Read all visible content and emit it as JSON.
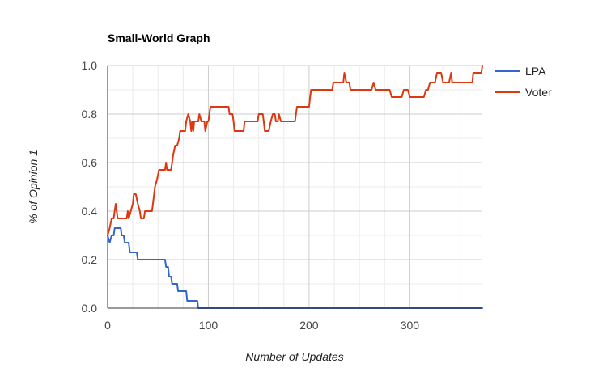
{
  "chart_data": {
    "type": "line",
    "title": "Small-World Graph",
    "xlabel": "Number of Updates",
    "ylabel": "% of Opinion 1",
    "xlim": [
      0,
      372
    ],
    "ylim": [
      0,
      1
    ],
    "x_ticks": [
      0,
      100,
      200,
      300
    ],
    "x_tick_labels": [
      "0",
      "100",
      "200",
      "300"
    ],
    "y_ticks": [
      0,
      0.2,
      0.4,
      0.6,
      0.8,
      1.0
    ],
    "y_tick_labels": [
      "0.0",
      "0.2",
      "0.4",
      "0.6",
      "0.8",
      "1.0"
    ],
    "grid": true,
    "legend_position": "right",
    "series": [
      {
        "name": "LPA",
        "color": "#3366cc",
        "points": [
          [
            0,
            0.3
          ],
          [
            2,
            0.27
          ],
          [
            4,
            0.3
          ],
          [
            6,
            0.3
          ],
          [
            7,
            0.33
          ],
          [
            13,
            0.33
          ],
          [
            14,
            0.3
          ],
          [
            16,
            0.3
          ],
          [
            17,
            0.27
          ],
          [
            21,
            0.27
          ],
          [
            22,
            0.23
          ],
          [
            29,
            0.23
          ],
          [
            30,
            0.2
          ],
          [
            57,
            0.2
          ],
          [
            58,
            0.17
          ],
          [
            60,
            0.17
          ],
          [
            61,
            0.13
          ],
          [
            63,
            0.13
          ],
          [
            64,
            0.1
          ],
          [
            69,
            0.1
          ],
          [
            70,
            0.07
          ],
          [
            78,
            0.07
          ],
          [
            79,
            0.03
          ],
          [
            89,
            0.03
          ],
          [
            90,
            0.0
          ],
          [
            372,
            0.0
          ]
        ]
      },
      {
        "name": "Voter",
        "color": "#dc3912",
        "points": [
          [
            0,
            0.3
          ],
          [
            2,
            0.33
          ],
          [
            4,
            0.37
          ],
          [
            6,
            0.37
          ],
          [
            7,
            0.4
          ],
          [
            8,
            0.43
          ],
          [
            10,
            0.37
          ],
          [
            19,
            0.37
          ],
          [
            20,
            0.4
          ],
          [
            21,
            0.37
          ],
          [
            23,
            0.4
          ],
          [
            25,
            0.43
          ],
          [
            26,
            0.47
          ],
          [
            28,
            0.47
          ],
          [
            30,
            0.43
          ],
          [
            32,
            0.4
          ],
          [
            33,
            0.37
          ],
          [
            36,
            0.37
          ],
          [
            37,
            0.4
          ],
          [
            44,
            0.4
          ],
          [
            45,
            0.43
          ],
          [
            47,
            0.5
          ],
          [
            49,
            0.53
          ],
          [
            51,
            0.57
          ],
          [
            57,
            0.57
          ],
          [
            58,
            0.6
          ],
          [
            59,
            0.57
          ],
          [
            63,
            0.57
          ],
          [
            64,
            0.6
          ],
          [
            65,
            0.63
          ],
          [
            67,
            0.67
          ],
          [
            69,
            0.67
          ],
          [
            71,
            0.7
          ],
          [
            72,
            0.73
          ],
          [
            77,
            0.73
          ],
          [
            78,
            0.77
          ],
          [
            80,
            0.8
          ],
          [
            82,
            0.77
          ],
          [
            83,
            0.73
          ],
          [
            84,
            0.77
          ],
          [
            85,
            0.73
          ],
          [
            86,
            0.77
          ],
          [
            90,
            0.77
          ],
          [
            91,
            0.8
          ],
          [
            93,
            0.77
          ],
          [
            96,
            0.77
          ],
          [
            97,
            0.73
          ],
          [
            99,
            0.77
          ],
          [
            100,
            0.77
          ],
          [
            101,
            0.8
          ],
          [
            102,
            0.83
          ],
          [
            120,
            0.83
          ],
          [
            121,
            0.8
          ],
          [
            124,
            0.8
          ],
          [
            125,
            0.77
          ],
          [
            126,
            0.73
          ],
          [
            135,
            0.73
          ],
          [
            136,
            0.77
          ],
          [
            149,
            0.77
          ],
          [
            150,
            0.8
          ],
          [
            154,
            0.8
          ],
          [
            155,
            0.77
          ],
          [
            156,
            0.73
          ],
          [
            160,
            0.73
          ],
          [
            162,
            0.77
          ],
          [
            164,
            0.8
          ],
          [
            166,
            0.8
          ],
          [
            167,
            0.77
          ],
          [
            169,
            0.77
          ],
          [
            170,
            0.8
          ],
          [
            172,
            0.77
          ],
          [
            186,
            0.77
          ],
          [
            187,
            0.8
          ],
          [
            188,
            0.83
          ],
          [
            200,
            0.83
          ],
          [
            201,
            0.87
          ],
          [
            202,
            0.9
          ],
          [
            223,
            0.9
          ],
          [
            224,
            0.93
          ],
          [
            234,
            0.93
          ],
          [
            235,
            0.97
          ],
          [
            237,
            0.93
          ],
          [
            240,
            0.93
          ],
          [
            241,
            0.9
          ],
          [
            262,
            0.9
          ],
          [
            264,
            0.93
          ],
          [
            266,
            0.9
          ],
          [
            280,
            0.9
          ],
          [
            282,
            0.87
          ],
          [
            292,
            0.87
          ],
          [
            294,
            0.9
          ],
          [
            298,
            0.9
          ],
          [
            300,
            0.87
          ],
          [
            314,
            0.87
          ],
          [
            316,
            0.9
          ],
          [
            318,
            0.9
          ],
          [
            320,
            0.93
          ],
          [
            325,
            0.93
          ],
          [
            327,
            0.97
          ],
          [
            331,
            0.97
          ],
          [
            333,
            0.93
          ],
          [
            339,
            0.93
          ],
          [
            341,
            0.97
          ],
          [
            342,
            0.93
          ],
          [
            362,
            0.93
          ],
          [
            363,
            0.97
          ],
          [
            371,
            0.97
          ],
          [
            372,
            1.0
          ]
        ]
      }
    ]
  }
}
